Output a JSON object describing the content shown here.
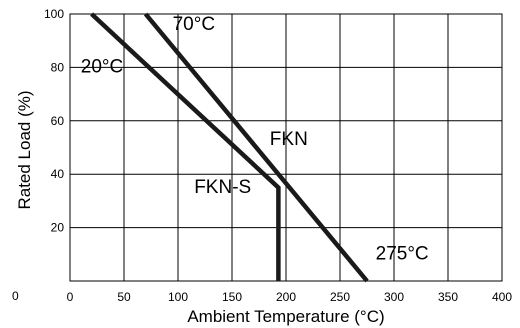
{
  "chart_data": {
    "type": "line",
    "xlabel": "Ambient Temperature (",
    "xlabel_unit": "°C)",
    "ylabel": "Rated Load (%)",
    "xlim": [
      0,
      400
    ],
    "ylim": [
      0,
      100
    ],
    "x_ticks": [
      "0",
      "50",
      "100",
      "150",
      "200",
      "250",
      "300",
      "350",
      "400"
    ],
    "y_ticks": [
      "20",
      "40",
      "60",
      "80",
      "100"
    ],
    "y_origin_label": "0",
    "grid": true,
    "series": [
      {
        "name": "FKN",
        "points": [
          [
            70,
            100
          ],
          [
            275,
            0
          ]
        ]
      },
      {
        "name": "FKN-S",
        "points": [
          [
            20,
            100
          ],
          [
            193,
            35
          ],
          [
            193,
            0
          ]
        ]
      }
    ],
    "annotations": [
      {
        "text": "70°C",
        "x": 95,
        "y": 94
      },
      {
        "text": "20°C",
        "x": 10,
        "y": 78
      },
      {
        "text": "FKN",
        "x": 185,
        "y": 51
      },
      {
        "text": "FKN-S",
        "x": 115,
        "y": 33
      },
      {
        "text": "275°C",
        "x": 283,
        "y": 8
      }
    ],
    "colors": {
      "line": "#1a1a1a",
      "grid": "#000000"
    }
  }
}
